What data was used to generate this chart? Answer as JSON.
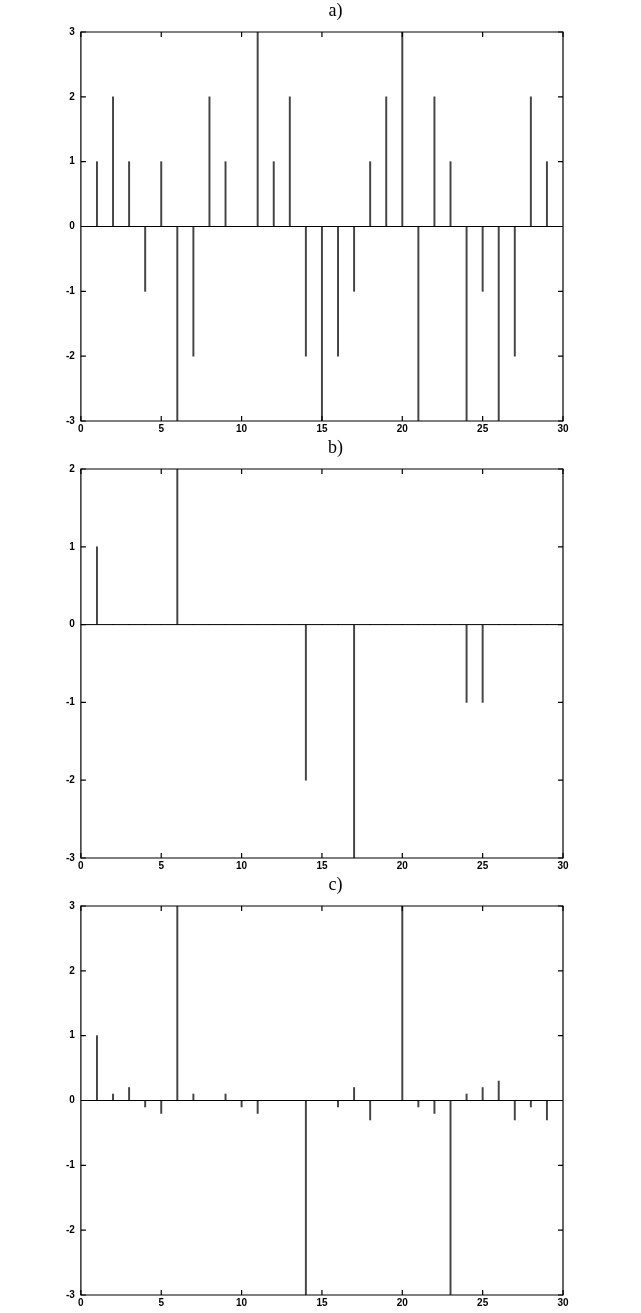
{
  "chart_data": [
    {
      "type": "bar",
      "title": "a)",
      "x": [
        1,
        2,
        3,
        4,
        5,
        6,
        7,
        8,
        9,
        10,
        11,
        12,
        13,
        14,
        15,
        16,
        17,
        18,
        19,
        20,
        21,
        22,
        23,
        24,
        25,
        26,
        27,
        28,
        29
      ],
      "series": [
        {
          "color": "#444444",
          "values": [
            1,
            2,
            1,
            -1,
            1,
            -3,
            -2,
            2,
            1,
            0,
            3,
            1,
            2,
            -2,
            -3,
            -2,
            -1,
            1,
            2,
            3,
            -3,
            2,
            1,
            -3,
            -1,
            -3,
            -2,
            2,
            1
          ]
        }
      ],
      "xlim": [
        0,
        30
      ],
      "xticks": [
        0,
        5,
        10,
        15,
        20,
        25,
        30
      ],
      "ylim": [
        -3,
        3
      ],
      "yticks": [
        -3,
        -2,
        -1,
        0,
        1,
        2,
        3
      ],
      "ref_lines": [
        {
          "axis": "y",
          "value": 0
        }
      ],
      "grid": false,
      "legend": false
    },
    {
      "type": "bar",
      "title": "b)",
      "x": [
        1,
        2,
        3,
        4,
        5,
        6,
        7,
        8,
        9,
        10,
        11,
        12,
        13,
        14,
        15,
        16,
        17,
        18,
        19,
        20,
        21,
        22,
        23,
        24,
        25,
        26,
        27,
        28,
        29
      ],
      "series": [
        {
          "color": "#444444",
          "values": [
            1,
            0,
            0,
            0,
            0,
            2,
            0,
            0,
            0,
            0,
            0,
            0,
            0,
            -2,
            0,
            0,
            -3,
            0,
            0,
            0,
            0,
            0,
            0,
            -1,
            -1,
            0,
            0,
            0,
            0
          ]
        }
      ],
      "xlim": [
        0,
        30
      ],
      "xticks": [
        0,
        5,
        10,
        15,
        20,
        25,
        30
      ],
      "ylim": [
        -3,
        2
      ],
      "yticks": [
        -3,
        -2,
        -1,
        0,
        1,
        2
      ],
      "ref_lines": [
        {
          "axis": "y",
          "value": 0
        }
      ],
      "grid": false,
      "legend": false
    },
    {
      "type": "bar",
      "title": "c)",
      "x": [
        1,
        2,
        3,
        4,
        5,
        6,
        7,
        8,
        9,
        10,
        11,
        12,
        13,
        14,
        15,
        16,
        17,
        18,
        19,
        20,
        21,
        22,
        23,
        24,
        25,
        26,
        27,
        28,
        29
      ],
      "series": [
        {
          "color": "#444444",
          "values": [
            1,
            0.1,
            0.2,
            -0.1,
            -0.2,
            3,
            0.1,
            0,
            0.1,
            -0.1,
            -0.2,
            0,
            0,
            -3,
            0,
            -0.1,
            0.2,
            -0.3,
            0,
            3,
            -0.1,
            -0.2,
            -3,
            0.1,
            0.2,
            0.3,
            -0.3,
            -0.1,
            -0.3
          ]
        }
      ],
      "xlim": [
        0,
        30
      ],
      "xticks": [
        0,
        5,
        10,
        15,
        20,
        25,
        30
      ],
      "ylim": [
        -3,
        3
      ],
      "yticks": [
        -3,
        -2,
        -1,
        0,
        1,
        2,
        3
      ],
      "ref_lines": [
        {
          "axis": "y",
          "value": 0
        }
      ],
      "grid": false,
      "legend": false
    }
  ]
}
